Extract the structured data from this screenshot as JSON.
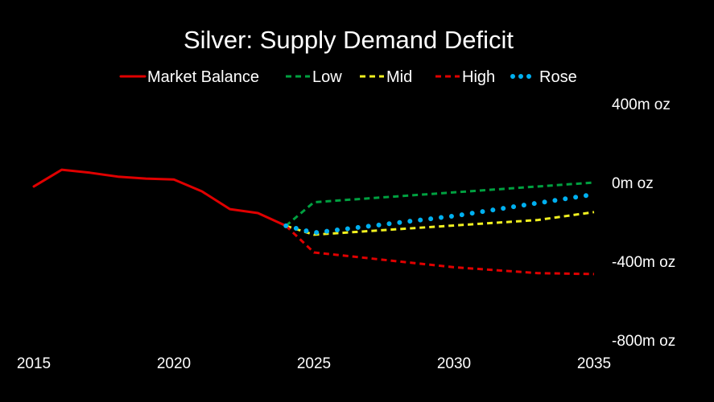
{
  "chart_data": {
    "type": "line",
    "title": "Silver: Supply Demand Deficit",
    "xlabel": "",
    "ylabel": "",
    "xlim": [
      2015,
      2035
    ],
    "ylim": [
      -800,
      400
    ],
    "x_ticks": [
      "2015",
      "2020",
      "2025",
      "2030",
      "2035"
    ],
    "y_ticks": [
      "400m oz",
      "0m oz",
      "-400m oz",
      "-800m oz"
    ],
    "y_tick_values": [
      400,
      0,
      -400,
      -800
    ],
    "x_tick_values": [
      2015,
      2020,
      2025,
      2030,
      2035
    ],
    "legend_position": "top",
    "grid": false,
    "series": [
      {
        "name": "Market Balance",
        "color": "#e00000",
        "style": "solid",
        "x": [
          2015,
          2016,
          2017,
          2018,
          2019,
          2020,
          2021,
          2022,
          2023,
          2024
        ],
        "y": [
          -20,
          65,
          50,
          30,
          20,
          15,
          -45,
          -135,
          -155,
          -220
        ]
      },
      {
        "name": "Low",
        "color": "#00a040",
        "style": "dashed",
        "x": [
          2024,
          2025,
          2035
        ],
        "y": [
          -220,
          -100,
          0
        ]
      },
      {
        "name": "Mid",
        "color": "#f0f020",
        "style": "dashed",
        "x": [
          2024,
          2025,
          2033,
          2035
        ],
        "y": [
          -220,
          -265,
          -190,
          -150
        ]
      },
      {
        "name": "High",
        "color": "#e00000",
        "style": "dashed",
        "x": [
          2024,
          2025,
          2030,
          2033,
          2035
        ],
        "y": [
          -220,
          -355,
          -430,
          -460,
          -465
        ]
      },
      {
        "name": "Rose",
        "color": "#00b0f0",
        "style": "dotted",
        "x": [
          2024,
          2025,
          2030,
          2035
        ],
        "y": [
          -220,
          -255,
          -170,
          -60
        ]
      }
    ]
  }
}
